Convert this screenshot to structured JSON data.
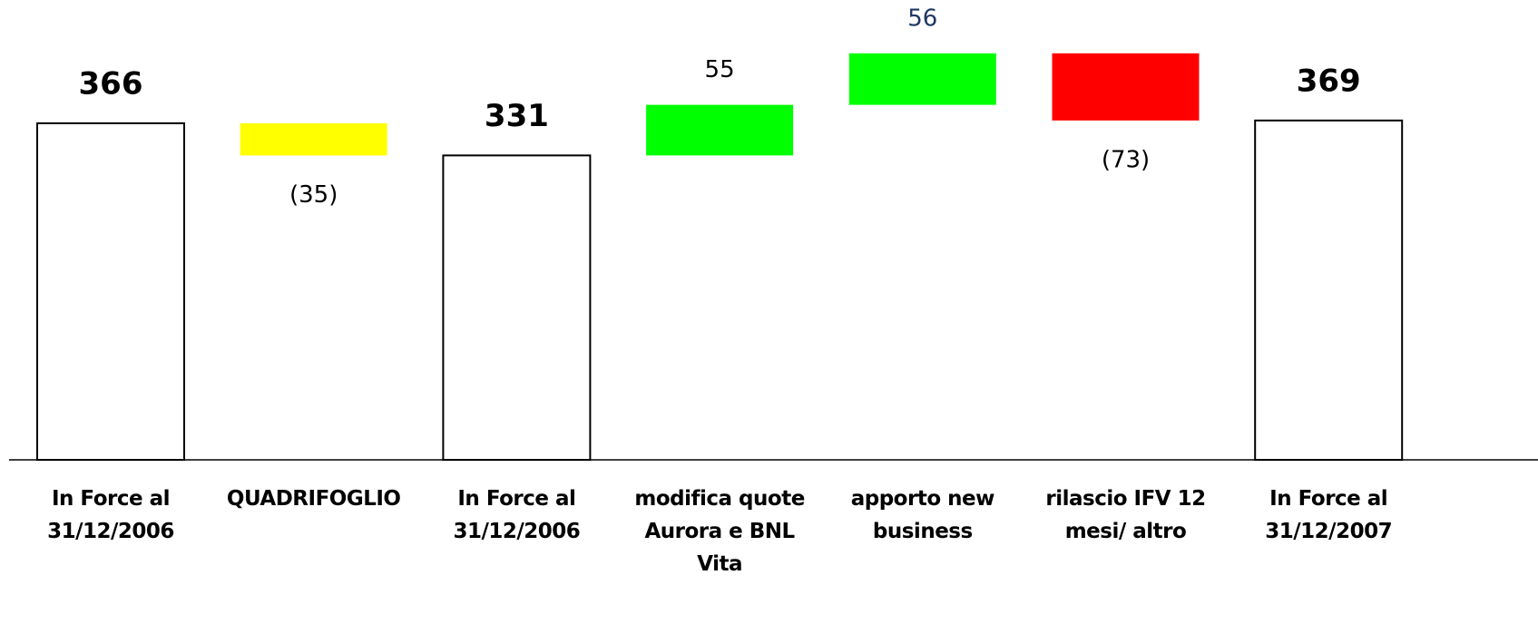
{
  "chart_data": {
    "type": "waterfall",
    "categories": [
      "In Force al 31/12/2006",
      "QUADRIFOGLIO",
      "In Force al 31/12/2006",
      "modifica quote Aurora e BNL Vita",
      "apporto new business",
      "rilascio IFV 12 mesi/ altro",
      "In Force al 31/12/2007"
    ],
    "values": [
      366,
      -35,
      331,
      55,
      56,
      -73,
      369
    ],
    "value_labels": [
      "366",
      "(35)",
      "331",
      "55",
      "56",
      "(73)",
      "369"
    ],
    "colors": [
      "#ffffff",
      "#ffff00",
      "#ffffff",
      "#00ff00",
      "#00ff00",
      "#ff0000",
      "#ffffff"
    ],
    "label_colors": [
      "#000000",
      "#000000",
      "#000000",
      "#000000",
      "#1f3864",
      "#000000",
      "#000000"
    ],
    "ylim": [
      0,
      500
    ]
  }
}
